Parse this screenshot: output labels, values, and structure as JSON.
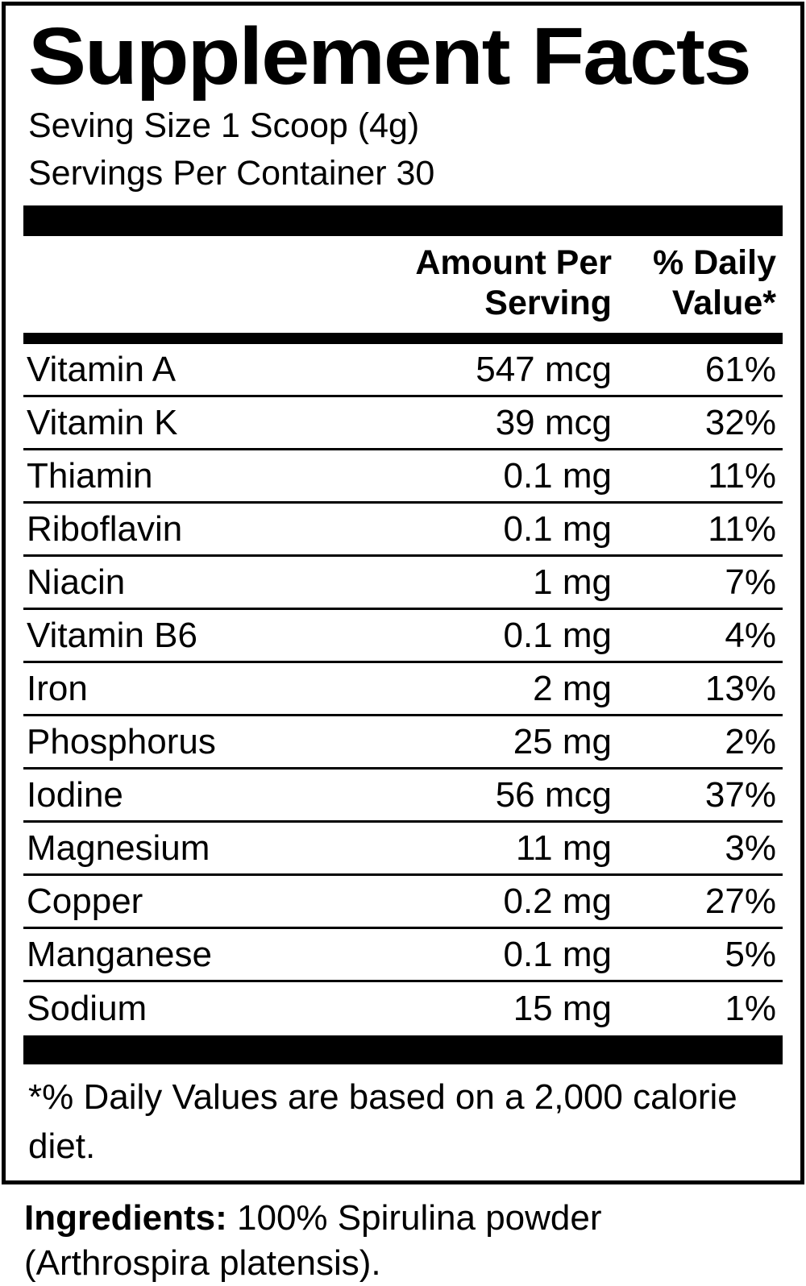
{
  "label": {
    "title": "Supplement Facts",
    "serving_size": "Seving Size 1 Scoop (4g)",
    "servings_per_container": "Servings Per Container 30",
    "columns": {
      "amount_line1": "Amount Per",
      "amount_line2": "Serving",
      "dv_line1": "% Daily",
      "dv_line2": "Value*"
    },
    "rows": [
      {
        "name": "Vitamin A",
        "amount": "547 mcg",
        "dv": "61%"
      },
      {
        "name": "Vitamin K",
        "amount": "39 mcg",
        "dv": "32%"
      },
      {
        "name": "Thiamin",
        "amount": "0.1 mg",
        "dv": "11%"
      },
      {
        "name": "Riboflavin",
        "amount": "0.1 mg",
        "dv": "11%"
      },
      {
        "name": "Niacin",
        "amount": "1 mg",
        "dv": "7%"
      },
      {
        "name": "Vitamin B6",
        "amount": "0.1 mg",
        "dv": "4%"
      },
      {
        "name": "Iron",
        "amount": "2 mg",
        "dv": "13%"
      },
      {
        "name": "Phosphorus",
        "amount": "25 mg",
        "dv": "2%"
      },
      {
        "name": "Iodine",
        "amount": "56 mcg",
        "dv": "37%"
      },
      {
        "name": "Magnesium",
        "amount": "11 mg",
        "dv": "3%"
      },
      {
        "name": "Copper",
        "amount": "0.2 mg",
        "dv": "27%"
      },
      {
        "name": "Manganese",
        "amount": "0.1 mg",
        "dv": "5%"
      },
      {
        "name": "Sodium",
        "amount": "15 mg",
        "dv": "1%"
      }
    ],
    "footnote": "*% Daily Values are based on a 2,000 calorie diet.",
    "ingredients_label": "Ingredients:",
    "ingredients_text": " 100% Spirulina powder (Arthrospira platensis).",
    "colors": {
      "text": "#000000",
      "background": "#ffffff"
    }
  }
}
